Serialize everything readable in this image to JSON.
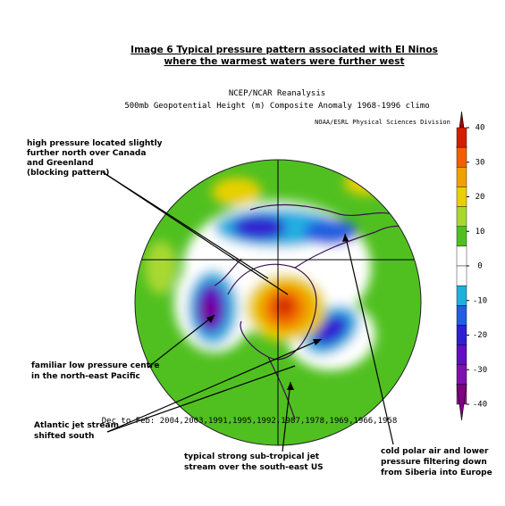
{
  "title": [
    "Image 6 Typical pressure pattern associated with El Ninos",
    "where the warmest waters were further west"
  ],
  "header": {
    "lines": [
      "NCEP/NCAR Reanalysis",
      "500mb Geopotential Height (m) Composite Anomaly 1968-1996 climo"
    ],
    "credit": "NOAA/ESRL Physical Sciences Division"
  },
  "footer": "Dec to Feb: 2004,2003,1991,1995,1992,1987,1978,1969,1966,1958",
  "colorbar": {
    "ticks": [
      40,
      30,
      20,
      10,
      0,
      -10,
      -20,
      -30,
      -40
    ],
    "colors": [
      "#a00000",
      "#d02000",
      "#f06000",
      "#f0a000",
      "#e8d000",
      "#a8d830",
      "#50c020",
      "#ffffff",
      "#ffffff",
      "#20b0e0",
      "#2060e0",
      "#3020d0",
      "#6010c0",
      "#8010b0",
      "#a010a0",
      "#800080"
    ]
  },
  "annotations": [
    [
      "high pressure located slightly",
      "further north over Canada",
      "and Greenland",
      "(blocking pattern)"
    ],
    [
      "familiar low pressure centre",
      "in the north-east  Pacific"
    ],
    [
      "Atlantic jet stream",
      "shifted south"
    ],
    [
      "typical strong sub-tropical jet",
      "stream over the south-east US"
    ],
    [
      "cold polar air and lower",
      "pressure filtering down",
      "from Siberia into Europe"
    ]
  ]
}
